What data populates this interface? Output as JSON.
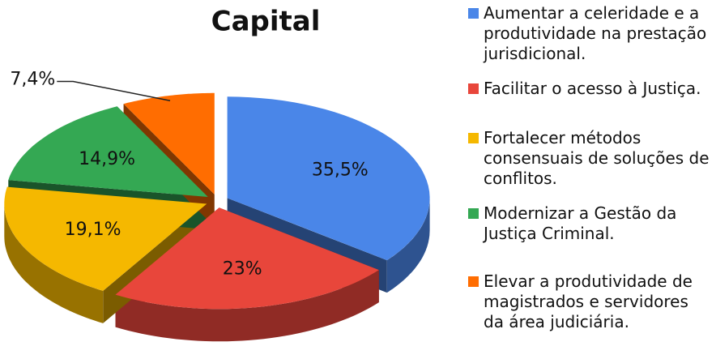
{
  "chart_data": {
    "type": "pie3d",
    "title": "Capital",
    "categories": [
      "Aumentar a celeridade e a produtividade na prestação jurisdicional.",
      "Facilitar o acesso à Justiça.",
      "Fortalecer métodos consensuais de soluções de conflitos.",
      "Modernizar a Gestão da Justiça Criminal.",
      "Elevar a produtividade de magistrados e servidores da área judiciária."
    ],
    "values": [
      35.5,
      23,
      19.1,
      14.9,
      7.4
    ],
    "value_labels": [
      "35,5%",
      "23%",
      "19,1%",
      "14,9%",
      "7,4%"
    ],
    "colors": [
      "#4a86e8",
      "#e8463b",
      "#f5b800",
      "#34a853",
      "#ff6d01"
    ]
  }
}
